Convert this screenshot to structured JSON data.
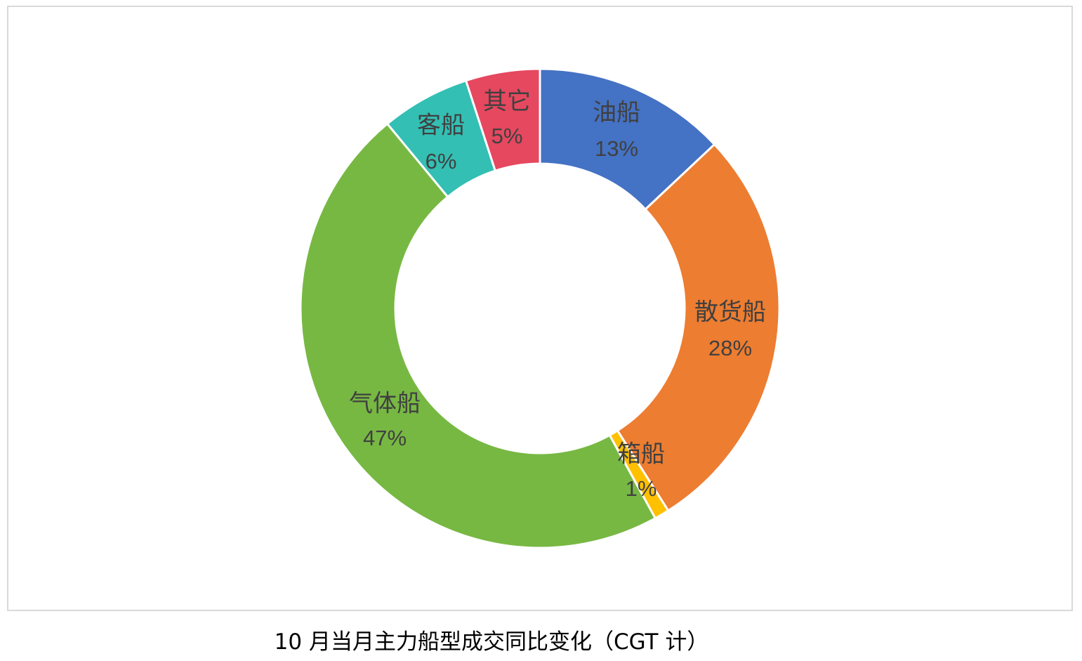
{
  "caption": "10 月当月主力船型成交同比变化（CGT 计）",
  "chart_data": {
    "type": "pie",
    "donut": true,
    "categories": [
      "油船",
      "散货船",
      "箱船",
      "气体船",
      "客船",
      "其它"
    ],
    "values": [
      13,
      28,
      1,
      47,
      6,
      5
    ],
    "labels": [
      "13%",
      "28%",
      "1%",
      "47%",
      "6%",
      "5%"
    ],
    "colors": [
      "#4472c4",
      "#ed7d31",
      "#ffc000",
      "#77b843",
      "#33bfb3",
      "#e5485f"
    ],
    "legend": "none"
  }
}
